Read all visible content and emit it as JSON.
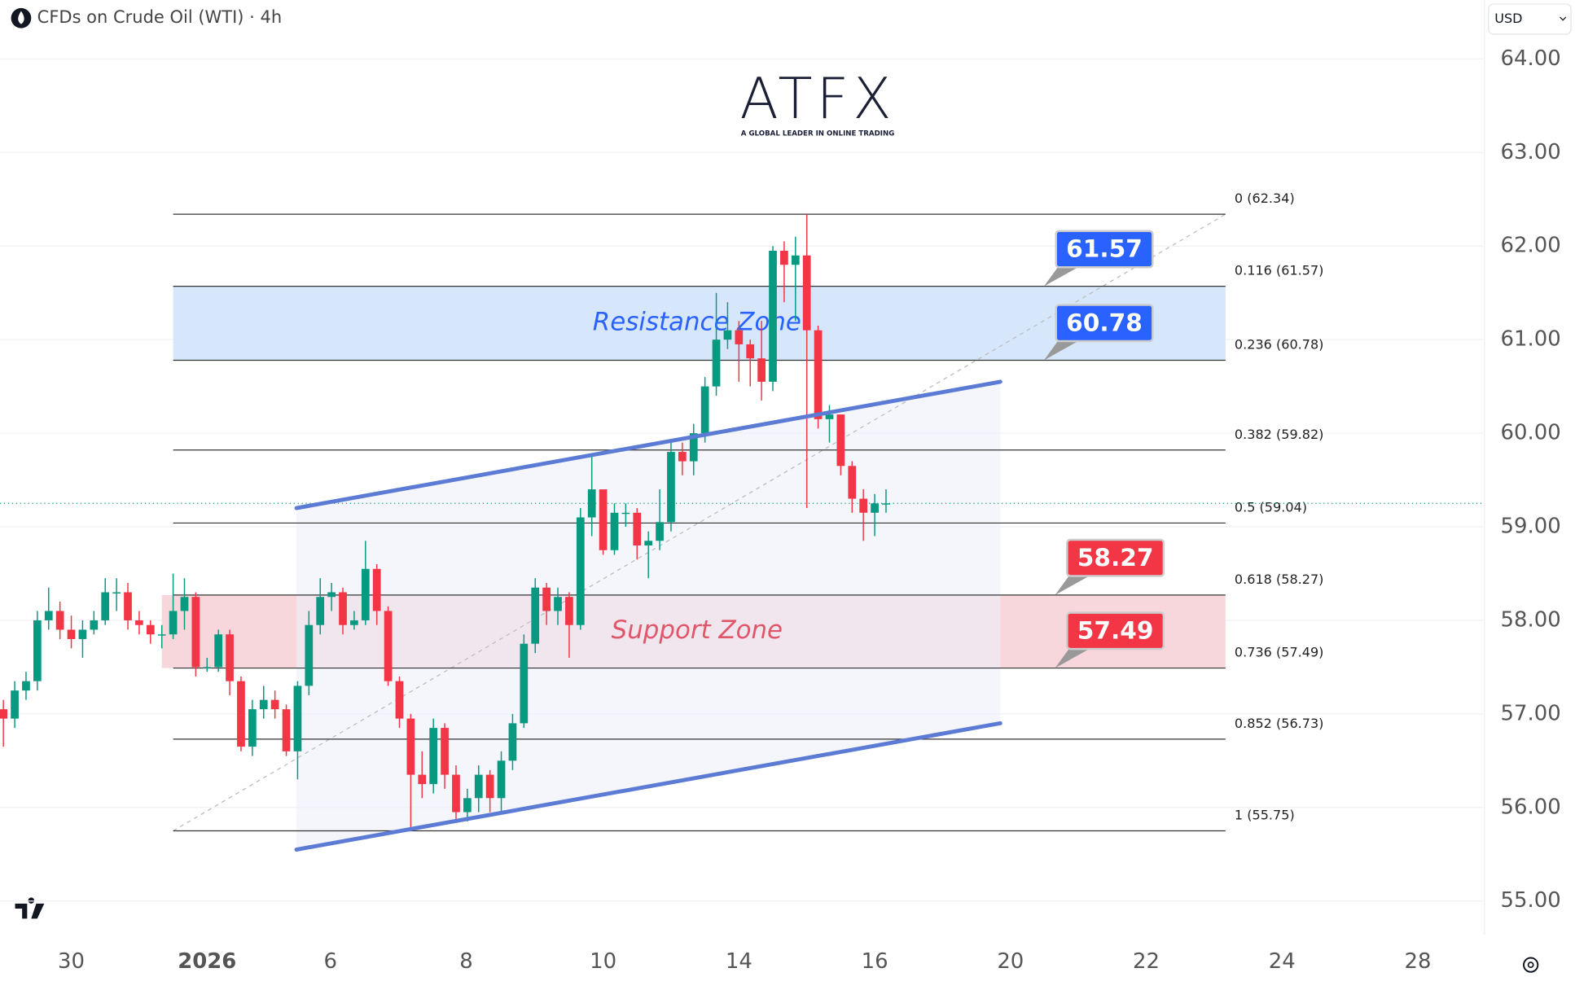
{
  "chart_data": {
    "type": "candlestick",
    "title": "CFDs on Crude Oil (WTI) · 4h",
    "currency": "USD",
    "logo": {
      "name": "ATFX",
      "tagline": "A GLOBAL LEADER IN ONLINE TRADING"
    },
    "colors": {
      "up": "#089981",
      "down": "#f23645"
    },
    "xlim": [
      -0.3,
      130.8
    ],
    "xticks": [
      {
        "value": 6.0,
        "label": "30"
      },
      {
        "value": 18.0,
        "label": "2026"
      },
      {
        "value": 28.9,
        "label": "6"
      },
      {
        "value": 40.9,
        "label": "8"
      },
      {
        "value": 53.0,
        "label": "10"
      },
      {
        "value": 65.0,
        "label": "14"
      },
      {
        "value": 77.0,
        "label": "16"
      },
      {
        "value": 89.0,
        "label": "20"
      },
      {
        "value": 101.0,
        "label": "22"
      },
      {
        "value": 113.0,
        "label": "24"
      },
      {
        "value": 125.0,
        "label": "28"
      }
    ],
    "ylim": [
      54.64,
      64.63
    ],
    "yticks": [
      {
        "value": 55,
        "label": "55.00"
      },
      {
        "value": 56,
        "label": "56.00"
      },
      {
        "value": 57,
        "label": "57.00"
      },
      {
        "value": 58,
        "label": "58.00"
      },
      {
        "value": 59,
        "label": "59.00"
      },
      {
        "value": 60,
        "label": "60.00"
      },
      {
        "value": 61,
        "label": "61.00"
      },
      {
        "value": 62,
        "label": "62.00"
      },
      {
        "value": 63,
        "label": "63.00"
      },
      {
        "value": 64,
        "label": "64.00"
      }
    ],
    "grid": true,
    "open": [
      57.05,
      56.95,
      57.25,
      57.35,
      58.0,
      58.1,
      57.9,
      57.8,
      57.9,
      58.0,
      58.3,
      58.3,
      58.0,
      57.95,
      57.85,
      57.85,
      58.1,
      58.25,
      57.5,
      57.5,
      57.85,
      57.35,
      56.65,
      57.05,
      57.15,
      57.05,
      56.6,
      57.3,
      57.95,
      58.25,
      58.3,
      57.95,
      58.0,
      58.55,
      58.1,
      57.35,
      56.95,
      56.35,
      56.25,
      56.85,
      56.35,
      55.95,
      56.1,
      56.35,
      56.1,
      56.5,
      56.9,
      57.75,
      58.35,
      58.1,
      58.25,
      57.95,
      59.1,
      59.4,
      58.75,
      59.15,
      59.15,
      58.8,
      58.85,
      59.05,
      59.8,
      59.7,
      60.0,
      60.5,
      61.0,
      61.1,
      60.95,
      60.8,
      60.55,
      61.95,
      61.8,
      61.9,
      61.1,
      60.15,
      60.2,
      59.65,
      59.3,
      59.15,
      59.25
    ],
    "high": [
      57.15,
      57.35,
      57.45,
      58.1,
      58.35,
      58.2,
      58.05,
      58.0,
      58.1,
      58.45,
      58.45,
      58.4,
      58.1,
      58.0,
      57.95,
      58.5,
      58.45,
      58.3,
      57.6,
      57.9,
      57.9,
      57.4,
      57.15,
      57.3,
      57.25,
      57.1,
      57.35,
      58.1,
      58.45,
      58.4,
      58.35,
      58.1,
      58.85,
      58.6,
      58.15,
      57.4,
      57.0,
      56.6,
      56.95,
      56.9,
      56.45,
      56.2,
      56.45,
      56.4,
      56.6,
      57.0,
      57.85,
      58.45,
      58.4,
      58.35,
      58.3,
      59.2,
      59.75,
      59.4,
      59.25,
      59.25,
      59.2,
      58.95,
      59.4,
      59.9,
      59.9,
      60.1,
      60.6,
      61.5,
      61.4,
      61.2,
      61.0,
      61.2,
      62.0,
      62.05,
      62.1,
      62.34,
      61.15,
      60.3,
      60.2,
      59.7,
      59.4,
      59.35,
      59.4
    ],
    "low": [
      56.65,
      56.85,
      57.15,
      57.25,
      57.9,
      57.8,
      57.7,
      57.6,
      57.85,
      57.95,
      58.1,
      57.9,
      57.85,
      57.75,
      57.7,
      57.8,
      57.9,
      57.4,
      57.45,
      57.45,
      57.2,
      56.6,
      56.55,
      56.95,
      56.95,
      56.55,
      56.3,
      57.2,
      57.85,
      58.1,
      57.85,
      57.9,
      57.95,
      57.95,
      57.3,
      56.85,
      55.75,
      56.1,
      56.15,
      56.2,
      55.85,
      55.85,
      55.95,
      55.95,
      55.95,
      56.4,
      56.85,
      57.65,
      57.95,
      57.95,
      57.6,
      57.9,
      58.9,
      58.7,
      58.7,
      59.0,
      58.65,
      58.45,
      58.75,
      58.95,
      59.55,
      59.55,
      59.9,
      60.4,
      60.9,
      60.55,
      60.5,
      60.35,
      60.45,
      61.4,
      61.2,
      59.2,
      60.05,
      59.9,
      59.55,
      59.15,
      58.85,
      58.9,
      59.15
    ],
    "close": [
      56.95,
      57.25,
      57.35,
      58.0,
      58.1,
      57.9,
      57.8,
      57.9,
      58.0,
      58.3,
      58.3,
      58.0,
      57.95,
      57.85,
      57.85,
      58.1,
      58.25,
      57.5,
      57.5,
      57.85,
      57.35,
      56.65,
      57.05,
      57.15,
      57.05,
      56.6,
      57.3,
      57.95,
      58.25,
      58.3,
      57.95,
      58.0,
      58.55,
      58.1,
      57.35,
      56.95,
      56.35,
      56.25,
      56.85,
      56.35,
      55.95,
      56.1,
      56.35,
      56.1,
      56.5,
      56.9,
      57.75,
      58.35,
      58.1,
      58.25,
      57.95,
      59.1,
      59.4,
      58.75,
      59.15,
      59.15,
      58.8,
      58.85,
      59.05,
      59.8,
      59.7,
      60.0,
      60.5,
      61.0,
      61.1,
      60.95,
      60.8,
      60.55,
      61.95,
      61.8,
      61.9,
      61.1,
      60.15,
      60.2,
      59.65,
      59.3,
      59.15,
      59.25,
      59.25
    ],
    "fib": {
      "x_range": [
        15,
        108
      ],
      "trend": [
        [
          15,
          55.75
        ],
        [
          108,
          62.34
        ]
      ],
      "levels": [
        {
          "value": 62.34,
          "label": "0 (62.34)"
        },
        {
          "value": 61.57,
          "label": "0.116 (61.57)"
        },
        {
          "value": 60.78,
          "label": "0.236 (60.78)"
        },
        {
          "value": 59.82,
          "label": "0.382 (59.82)"
        },
        {
          "value": 59.04,
          "label": "0.5 (59.04)"
        },
        {
          "value": 58.27,
          "label": "0.618 (58.27)"
        },
        {
          "value": 57.49,
          "label": "0.736 (57.49)"
        },
        {
          "value": 56.73,
          "label": "0.852 (56.73)"
        },
        {
          "value": 55.75,
          "label": "1 (55.75)"
        }
      ]
    },
    "zones": [
      {
        "label": "Resistance Zone",
        "x_range": [
          15,
          108
        ],
        "range": [
          60.78,
          61.57
        ],
        "fill": "#d6e6fb",
        "text_color": "#2962ff"
      },
      {
        "label": "Support Zone",
        "x_range": [
          14,
          108
        ],
        "range": [
          57.49,
          58.27
        ],
        "fill": "#f8d7dc",
        "text_color": "#e0566a"
      }
    ],
    "channel": {
      "color": "#5b7bd5",
      "upper": [
        [
          25.9,
          59.2
        ],
        [
          88.1,
          60.55
        ]
      ],
      "lower": [
        [
          25.9,
          55.55
        ],
        [
          88.1,
          56.9
        ]
      ]
    },
    "callouts": [
      {
        "value": 61.57,
        "color": "#2962ff"
      },
      {
        "value": 60.78,
        "color": "#2962ff"
      },
      {
        "value": 58.27,
        "color": "#f23645"
      },
      {
        "value": 57.49,
        "color": "#f23645"
      }
    ]
  }
}
